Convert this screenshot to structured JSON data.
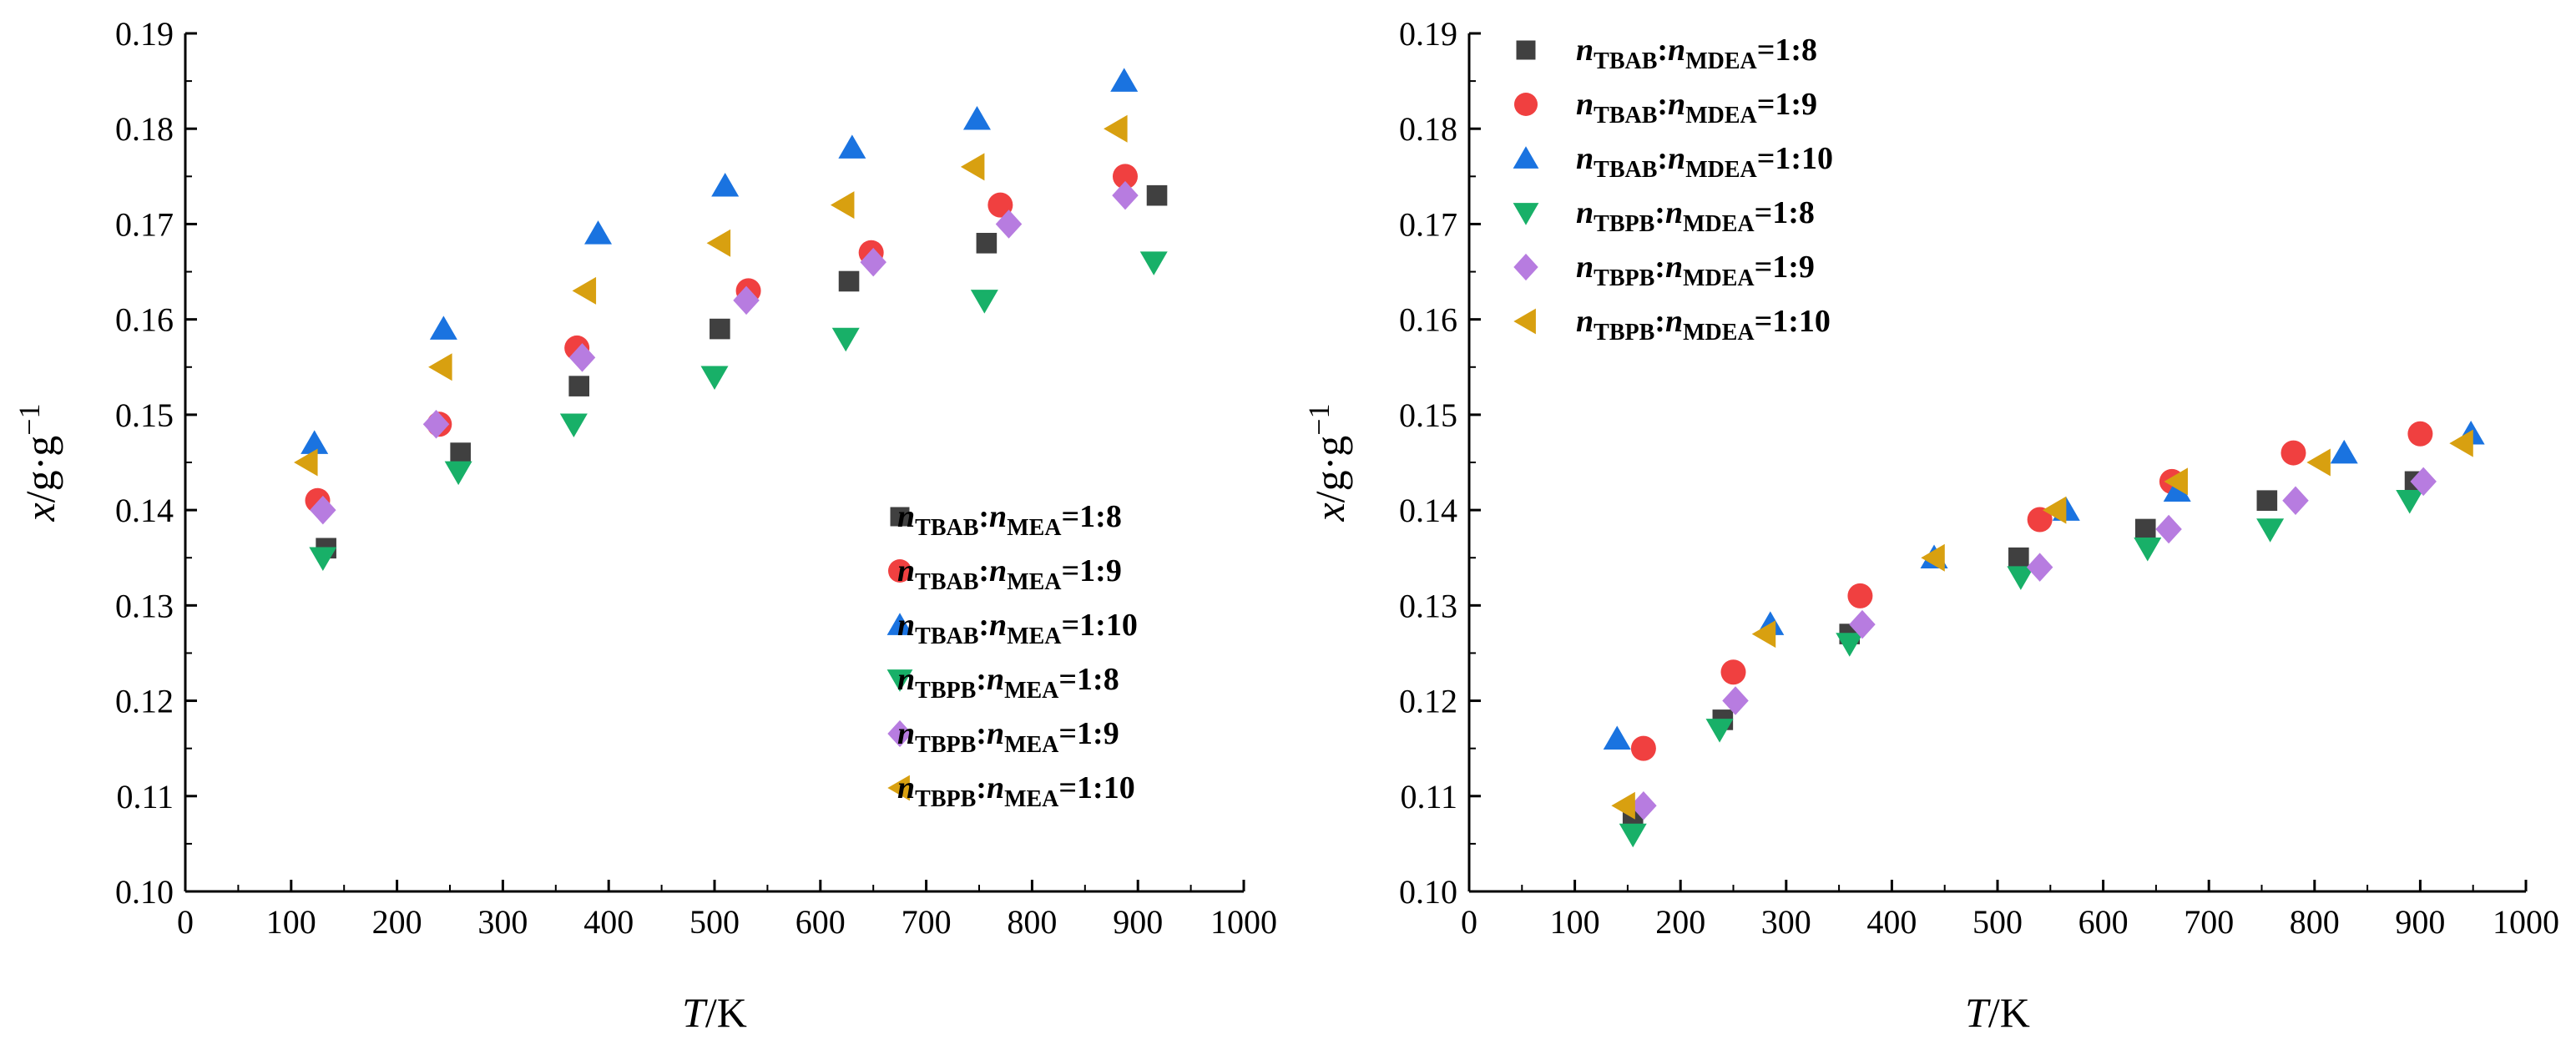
{
  "colors": {
    "TBAB_1_8": "#404040",
    "TBAB_1_9": "#f04040",
    "TBAB_1_10": "#1a73e0",
    "TBPB_1_8": "#18b068",
    "TBPB_1_9": "#b77ce0",
    "TBPB_1_10": "#d8a010"
  },
  "chart_data": [
    {
      "type": "scatter",
      "xlabel": {
        "italic": "T",
        "rest": "/K"
      },
      "ylabel": {
        "italic": "x",
        "rest": "/g·g",
        "sup": "−1"
      },
      "xlim": [
        0,
        1000
      ],
      "ylim": [
        0.1,
        0.19
      ],
      "xticks": [
        "0",
        "100",
        "200",
        "300",
        "400",
        "500",
        "600",
        "700",
        "800",
        "900",
        "1000"
      ],
      "yticks": [
        "0.10",
        "0.11",
        "0.12",
        "0.13",
        "0.14",
        "0.15",
        "0.16",
        "0.17",
        "0.18",
        "0.19"
      ],
      "legend_position": "lower-right",
      "series": [
        {
          "name": "nTBAB:nMEA=1:8",
          "n1": "n",
          "s1": "TBAB",
          "n2": "n",
          "s2": "MEA",
          "ratio": "=1:8",
          "marker": "square",
          "color_key": "TBAB_1_8",
          "x": [
            133,
            260,
            372,
            505,
            627,
            757,
            918
          ],
          "y": [
            0.136,
            0.146,
            0.153,
            0.159,
            0.164,
            0.168,
            0.173
          ]
        },
        {
          "name": "nTBAB:nMEA=1:9",
          "n1": "n",
          "s1": "TBAB",
          "n2": "n",
          "s2": "MEA",
          "ratio": "=1:9",
          "marker": "circle",
          "color_key": "TBAB_1_9",
          "x": [
            125,
            240,
            370,
            532,
            648,
            770,
            888
          ],
          "y": [
            0.141,
            0.149,
            0.157,
            0.163,
            0.167,
            0.172,
            0.175
          ]
        },
        {
          "name": "nTBAB:nMEA=1:10",
          "n1": "n",
          "s1": "TBAB",
          "n2": "n",
          "s2": "MEA",
          "ratio": "=1:10",
          "marker": "triangle-up",
          "color_key": "TBAB_1_10",
          "x": [
            122,
            244,
            390,
            510,
            630,
            748,
            887
          ],
          "y": [
            0.147,
            0.159,
            0.169,
            0.174,
            0.178,
            0.181,
            0.185
          ]
        },
        {
          "name": "nTBPB:nMEA=1:8",
          "n1": "n",
          "s1": "TBPB",
          "n2": "n",
          "s2": "MEA",
          "ratio": "=1:8",
          "marker": "triangle-down",
          "color_key": "TBPB_1_8",
          "x": [
            130,
            258,
            367,
            500,
            624,
            755,
            915
          ],
          "y": [
            0.135,
            0.144,
            0.149,
            0.154,
            0.158,
            0.162,
            0.166
          ]
        },
        {
          "name": "nTBPB:nMEA=1:9",
          "n1": "n",
          "s1": "TBPB",
          "n2": "n",
          "s2": "MEA",
          "ratio": "=1:9",
          "marker": "diamond",
          "color_key": "TBPB_1_9",
          "x": [
            130,
            237,
            375,
            530,
            650,
            778,
            888
          ],
          "y": [
            0.14,
            0.149,
            0.156,
            0.162,
            0.166,
            0.17,
            0.173
          ]
        },
        {
          "name": "nTBPB:nMEA=1:10",
          "n1": "n",
          "s1": "TBPB",
          "n2": "n",
          "s2": "MEA",
          "ratio": "=1:10",
          "marker": "triangle-left",
          "color_key": "TBPB_1_10",
          "x": [
            115,
            242,
            378,
            505,
            622,
            745,
            880
          ],
          "y": [
            0.145,
            0.155,
            0.163,
            0.168,
            0.172,
            0.176,
            0.18
          ]
        }
      ]
    },
    {
      "type": "scatter",
      "xlabel": {
        "italic": "T",
        "rest": "/K"
      },
      "ylabel": {
        "italic": "x",
        "rest": "/g·g",
        "sup": "−1"
      },
      "xlim": [
        0,
        1000
      ],
      "ylim": [
        0.1,
        0.19
      ],
      "xticks": [
        "0",
        "100",
        "200",
        "300",
        "400",
        "500",
        "600",
        "700",
        "800",
        "900",
        "1000"
      ],
      "yticks": [
        "0.10",
        "0.11",
        "0.12",
        "0.13",
        "0.14",
        "0.15",
        "0.16",
        "0.17",
        "0.18",
        "0.19"
      ],
      "legend_position": "top-left",
      "series": [
        {
          "name": "nTBAB:nMDEA=1:8",
          "n1": "n",
          "s1": "TBAB",
          "n2": "n",
          "s2": "MDEA",
          "ratio": "=1:8",
          "marker": "square",
          "color_key": "TBAB_1_8",
          "x": [
            155,
            240,
            360,
            520,
            640,
            755,
            895
          ],
          "y": [
            0.108,
            0.118,
            0.127,
            0.135,
            0.138,
            0.141,
            0.143
          ]
        },
        {
          "name": "nTBAB:nMDEA=1:9",
          "n1": "n",
          "s1": "TBAB",
          "n2": "n",
          "s2": "MDEA",
          "ratio": "=1:9",
          "marker": "circle",
          "color_key": "TBAB_1_9",
          "x": [
            165,
            250,
            370,
            540,
            665,
            780,
            900
          ],
          "y": [
            0.115,
            0.123,
            0.131,
            0.139,
            0.143,
            0.146,
            0.148
          ]
        },
        {
          "name": "nTBAB:nMDEA=1:10",
          "n1": "n",
          "s1": "TBAB",
          "n2": "n",
          "s2": "MDEA",
          "ratio": "=1:10",
          "marker": "triangle-up",
          "color_key": "TBAB_1_10",
          "x": [
            140,
            285,
            440,
            565,
            670,
            828,
            948
          ],
          "y": [
            0.116,
            0.128,
            0.135,
            0.14,
            0.142,
            0.146,
            0.148
          ]
        },
        {
          "name": "nTBPB:nMDEA=1:8",
          "n1": "n",
          "s1": "TBPB",
          "n2": "n",
          "s2": "MDEA",
          "ratio": "=1:8",
          "marker": "triangle-down",
          "color_key": "TBPB_1_8",
          "x": [
            155,
            237,
            360,
            522,
            642,
            758,
            890
          ],
          "y": [
            0.106,
            0.117,
            0.126,
            0.133,
            0.136,
            0.138,
            0.141
          ]
        },
        {
          "name": "nTBPB:nMDEA=1:9",
          "n1": "n",
          "s1": "TBPB",
          "n2": "n",
          "s2": "MDEA",
          "ratio": "=1:9",
          "marker": "diamond",
          "color_key": "TBPB_1_9",
          "x": [
            165,
            252,
            372,
            540,
            662,
            782,
            903
          ],
          "y": [
            0.109,
            0.12,
            0.128,
            0.134,
            0.138,
            0.141,
            0.143
          ]
        },
        {
          "name": "nTBPB:nMDEA=1:10",
          "n1": "n",
          "s1": "TBPB",
          "n2": "n",
          "s2": "MDEA",
          "ratio": "=1:10",
          "marker": "triangle-left",
          "color_key": "TBPB_1_10",
          "x": [
            147,
            280,
            440,
            555,
            670,
            805,
            940
          ],
          "y": [
            0.109,
            0.127,
            0.135,
            0.14,
            0.143,
            0.145,
            0.147
          ]
        }
      ]
    }
  ]
}
